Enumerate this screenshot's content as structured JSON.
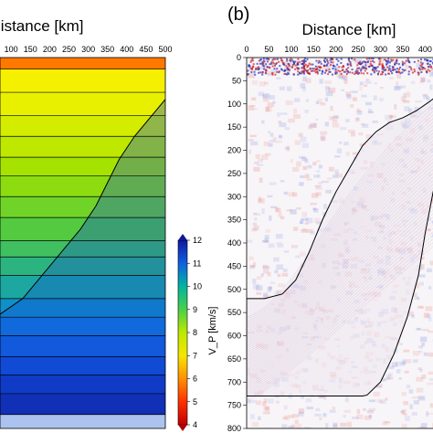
{
  "chart_data": [
    {
      "panel_label": "",
      "type": "heatmap",
      "title": "Distance [km]",
      "xlabel": "Distance [km]",
      "x_ticks": [
        50,
        100,
        150,
        200,
        250,
        300,
        350,
        400,
        450,
        500
      ],
      "xlim": [
        0,
        500
      ],
      "ylim": [
        0,
        800
      ],
      "grid": false,
      "layer_interfaces_depth": [
        25,
        75,
        125,
        170,
        215,
        255,
        300,
        345,
        395,
        430,
        470,
        520,
        560,
        600,
        645,
        685,
        725,
        770
      ],
      "subducting_slab_top": {
        "x": [
          0,
          20,
          60,
          130,
          180,
          230,
          280,
          320,
          350,
          380,
          420,
          470,
          500
        ],
        "y": [
          620,
          600,
          560,
          520,
          470,
          420,
          370,
          320,
          270,
          220,
          170,
          120,
          90
        ]
      },
      "colorbar": {
        "label": "V_P [km/s]",
        "ticks": [
          4,
          5,
          6,
          7,
          8,
          9,
          10,
          11,
          12
        ],
        "range": [
          4,
          12
        ],
        "colors": [
          "#c00000",
          "#ff3000",
          "#ff9000",
          "#f5e600",
          "#bde800",
          "#48d04a",
          "#00b5a0",
          "#1060e0",
          "#1018a0"
        ]
      }
    },
    {
      "panel_label": "(b)",
      "type": "heatmap",
      "title": "Distance [km]",
      "xlabel": "Distance [km]",
      "x_ticks": [
        0,
        50,
        100,
        150,
        200,
        250,
        300,
        350,
        400
      ],
      "y_ticks": [
        0,
        50,
        100,
        150,
        200,
        250,
        300,
        350,
        400,
        450,
        500,
        550,
        600,
        650,
        700,
        750,
        800
      ],
      "xlim": [
        0,
        430
      ],
      "ylim": [
        0,
        800
      ],
      "grid": false,
      "slab_outline": {
        "x": [
          0,
          40,
          80,
          110,
          140,
          170,
          200,
          230,
          260,
          290,
          320,
          350,
          380,
          410,
          430,
          430,
          420,
          400,
          385,
          360,
          330,
          300,
          270,
          260,
          0
        ],
        "y": [
          520,
          520,
          510,
          480,
          420,
          350,
          290,
          240,
          190,
          160,
          140,
          130,
          115,
          95,
          80,
          240,
          280,
          380,
          470,
          560,
          640,
          700,
          728,
          730,
          730
        ]
      }
    }
  ]
}
